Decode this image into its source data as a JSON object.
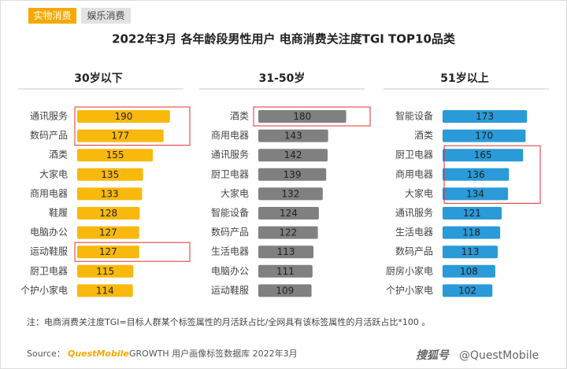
{
  "tabs": [
    "实物消费",
    "娱乐消费"
  ],
  "title": "2022年3月 各年龄段男性用户 电商消费关注度TGI TOP10品类",
  "chart_data": [
    {
      "type": "bar",
      "title": "30岁以下",
      "color": "#f8b90c",
      "categories": [
        "通讯服务",
        "数码产品",
        "酒类",
        "大家电",
        "商用电器",
        "鞋履",
        "电脑办公",
        "运动鞋服",
        "厨卫电器",
        "个护小家电"
      ],
      "values": [
        190,
        177,
        155,
        135,
        133,
        128,
        127,
        127,
        115,
        114
      ]
    },
    {
      "type": "bar",
      "title": "31-50岁",
      "color": "#808080",
      "categories": [
        "酒类",
        "商用电器",
        "通讯服务",
        "厨卫电器",
        "大家电",
        "智能设备",
        "数码产品",
        "生活电器",
        "电脑办公",
        "运动鞋服"
      ],
      "values": [
        180,
        143,
        142,
        139,
        132,
        124,
        122,
        113,
        111,
        109
      ]
    },
    {
      "type": "bar",
      "title": "51岁以上",
      "color": "#2a9ad8",
      "categories": [
        "智能设备",
        "酒类",
        "厨卫电器",
        "商用电器",
        "大家电",
        "通讯服务",
        "生活电器",
        "数码产品",
        "厨房小家电",
        "个护小家电"
      ],
      "values": [
        173,
        170,
        165,
        136,
        134,
        121,
        118,
        113,
        108,
        102
      ]
    }
  ],
  "note": "注：电商消费关注度TGI=目标人群某个标签属性的月活跃占比/全网具有该标签属性的月活跃占比*100 。",
  "source_label": "Source：",
  "source_brand": "QuestMobile",
  "source_text": "GROWTH 用户画像标签数据库 2022年3月",
  "watermark_logo": "搜狐号",
  "watermark_text": "@QuestMobile"
}
